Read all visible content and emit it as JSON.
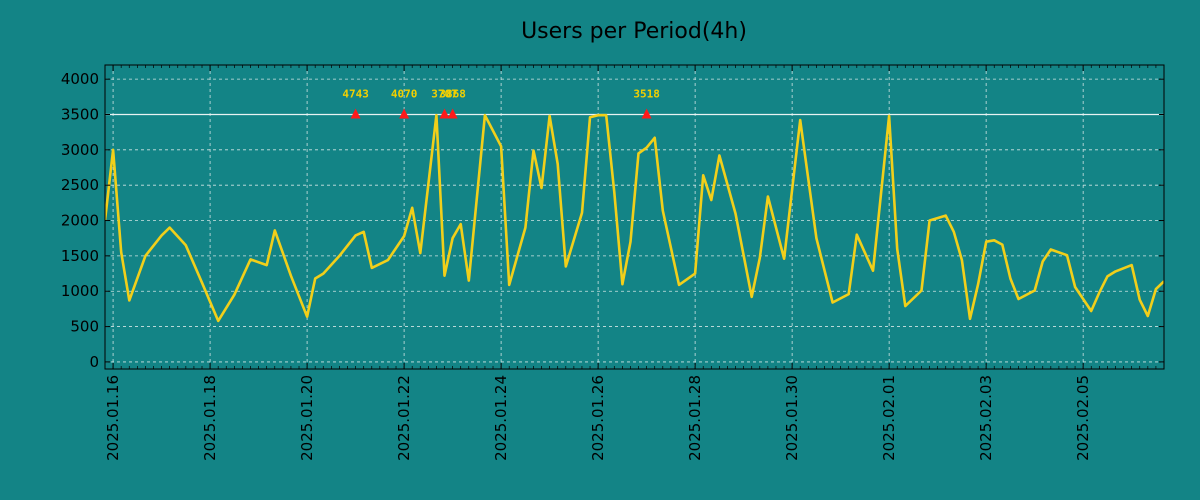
{
  "colors": {
    "background": "#138486",
    "plot_background": "#138486",
    "line": "#f1cf1a",
    "grid": "#cfe3e3",
    "threshold": "#e8f2f2",
    "peak_marker": "#ff1a1a",
    "peak_label": "#f2d000"
  },
  "chart_data": {
    "type": "line",
    "title": "Users per Period(4h)",
    "xlabel": "",
    "ylabel": "",
    "grid": true,
    "x_start": "2025-01-15T20:00",
    "x_end": "2025-02-06T16:00",
    "ylim": [
      -100,
      4200
    ],
    "y_ticks": [
      0,
      500,
      1000,
      1500,
      2000,
      2500,
      3000,
      3500,
      4000
    ],
    "x_ticks": [
      {
        "date": "2025-01-16",
        "label": "2025.01.16"
      },
      {
        "date": "2025-01-18",
        "label": "2025.01.18"
      },
      {
        "date": "2025-01-20",
        "label": "2025.01.20"
      },
      {
        "date": "2025-01-22",
        "label": "2025.01.22"
      },
      {
        "date": "2025-01-24",
        "label": "2025.01.24"
      },
      {
        "date": "2025-01-26",
        "label": "2025.01.26"
      },
      {
        "date": "2025-01-28",
        "label": "2025.01.28"
      },
      {
        "date": "2025-01-30",
        "label": "2025.01.30"
      },
      {
        "date": "2025-02-01",
        "label": "2025.02.01"
      },
      {
        "date": "2025-02-03",
        "label": "2025.02.03"
      },
      {
        "date": "2025-02-05",
        "label": "2025.02.05"
      }
    ],
    "threshold": 3500,
    "series": [
      {
        "x": [
          "2025-01-15T20:00",
          "2025-01-16T00:00",
          "2025-01-16T04:00",
          "2025-01-16T08:00",
          "2025-01-16T16:00",
          "2025-01-17T00:00",
          "2025-01-17T04:00",
          "2025-01-17T12:00",
          "2025-01-17T20:00",
          "2025-01-18T04:00",
          "2025-01-18T12:00",
          "2025-01-18T20:00",
          "2025-01-19T04:00",
          "2025-01-19T08:00",
          "2025-01-19T16:00",
          "2025-01-20T00:00",
          "2025-01-20T04:00",
          "2025-01-20T08:00",
          "2025-01-20T16:00",
          "2025-01-21T00:00",
          "2025-01-21T04:00",
          "2025-01-21T08:00",
          "2025-01-21T16:00",
          "2025-01-22T00:00",
          "2025-01-22T04:00",
          "2025-01-22T08:00",
          "2025-01-22T16:00",
          "2025-01-22T20:00",
          "2025-01-23T00:00",
          "2025-01-23T04:00",
          "2025-01-23T08:00",
          "2025-01-23T16:00",
          "2025-01-24T00:00",
          "2025-01-24T04:00",
          "2025-01-24T12:00",
          "2025-01-24T16:00",
          "2025-01-24T20:00",
          "2025-01-25T00:00",
          "2025-01-25T04:00",
          "2025-01-25T08:00",
          "2025-01-25T16:00",
          "2025-01-25T20:00",
          "2025-01-26T00:00",
          "2025-01-26T04:00",
          "2025-01-26T08:00",
          "2025-01-26T12:00",
          "2025-01-26T16:00",
          "2025-01-26T20:00",
          "2025-01-27T00:00",
          "2025-01-27T04:00",
          "2025-01-27T08:00",
          "2025-01-27T16:00",
          "2025-01-28T00:00",
          "2025-01-28T04:00",
          "2025-01-28T08:00",
          "2025-01-28T12:00",
          "2025-01-28T20:00",
          "2025-01-29T04:00",
          "2025-01-29T08:00",
          "2025-01-29T12:00",
          "2025-01-29T20:00",
          "2025-01-30T04:00",
          "2025-01-30T12:00",
          "2025-01-30T20:00",
          "2025-01-31T04:00",
          "2025-01-31T08:00",
          "2025-01-31T16:00",
          "2025-02-01T00:00",
          "2025-02-01T04:00",
          "2025-02-01T08:00",
          "2025-02-01T16:00",
          "2025-02-01T20:00",
          "2025-02-02T04:00",
          "2025-02-02T08:00",
          "2025-02-02T12:00",
          "2025-02-02T16:00",
          "2025-02-02T20:00",
          "2025-02-03T00:00",
          "2025-02-03T04:00",
          "2025-02-03T08:00",
          "2025-02-03T12:00",
          "2025-02-03T16:00",
          "2025-02-04T00:00",
          "2025-02-04T04:00",
          "2025-02-04T08:00",
          "2025-02-04T16:00",
          "2025-02-04T20:00",
          "2025-02-05T04:00",
          "2025-02-05T08:00",
          "2025-02-05T12:00",
          "2025-02-05T16:00",
          "2025-02-06T00:00",
          "2025-02-06T04:00",
          "2025-02-06T08:00",
          "2025-02-06T12:00",
          "2025-02-06T16:00"
        ],
        "values": [
          2000,
          3000,
          1550,
          870,
          1500,
          1790,
          1900,
          1650,
          1120,
          580,
          950,
          1450,
          1370,
          1860,
          1220,
          640,
          1180,
          1250,
          1500,
          1790,
          1840,
          1330,
          1440,
          1780,
          2180,
          1540,
          3490,
          1220,
          1750,
          1950,
          1150,
          3490,
          3050,
          1090,
          1900,
          2990,
          2460,
          3480,
          2800,
          1350,
          2110,
          3460,
          3490,
          3490,
          2400,
          1100,
          1700,
          2950,
          3030,
          3170,
          2140,
          1090,
          1250,
          2640,
          2290,
          2920,
          2100,
          920,
          1470,
          2340,
          1460,
          3420,
          1750,
          840,
          960,
          1800,
          1290,
          3480,
          1600,
          790,
          1010,
          2000,
          2070,
          1840,
          1440,
          610,
          1100,
          1700,
          1720,
          1660,
          1180,
          890,
          1010,
          1420,
          1590,
          1510,
          1060,
          720,
          980,
          1210,
          1280,
          1370,
          880,
          650,
          1030,
          1140
        ]
      }
    ],
    "peaks": [
      {
        "x": "2025-01-21T00:00",
        "value": 3500,
        "label": "4743"
      },
      {
        "x": "2025-01-22T00:00",
        "value": 3500,
        "label": "4070"
      },
      {
        "x": "2025-01-22T20:00",
        "value": 3500,
        "label": "3707"
      },
      {
        "x": "2025-01-23T00:00",
        "value": 3500,
        "label": "3868"
      },
      {
        "x": "2025-01-27T00:00",
        "value": 3500,
        "label": "3518"
      }
    ]
  }
}
